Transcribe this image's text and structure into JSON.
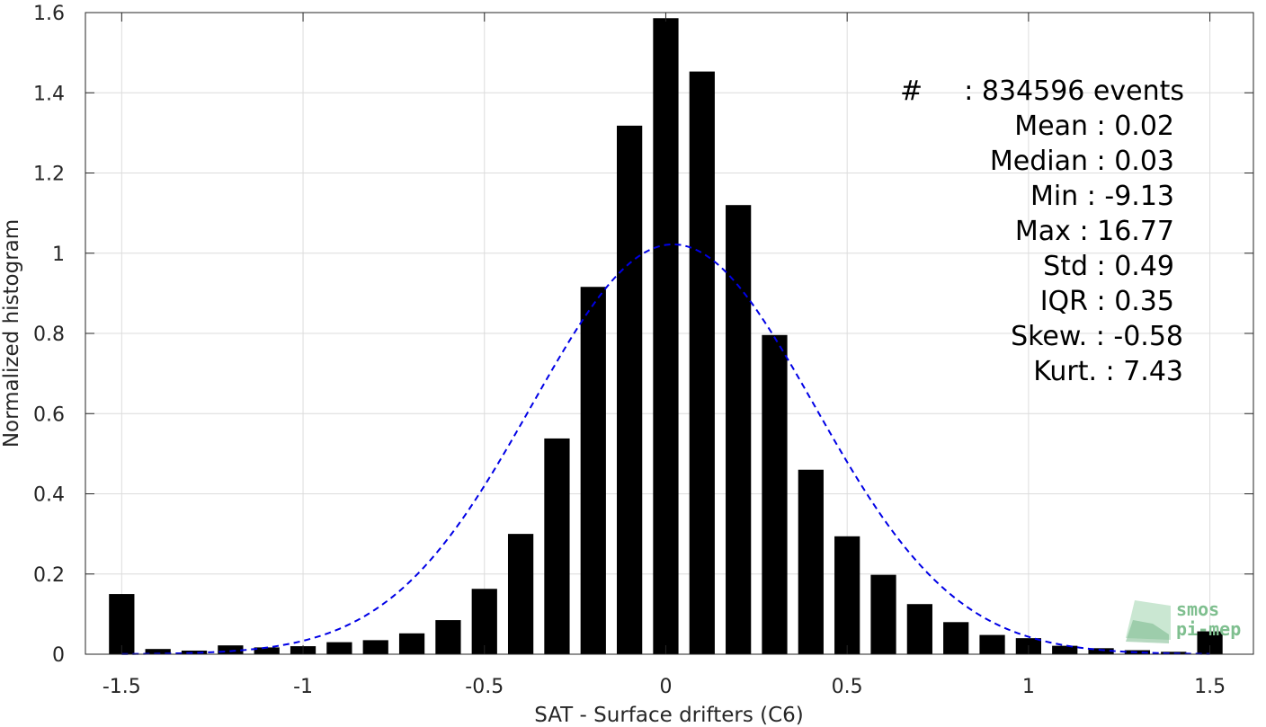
{
  "chart_data": {
    "type": "bar",
    "xlabel": "SAT - Surface drifters (C6)",
    "ylabel": "Normalized histogram",
    "xlim": [
      -1.6,
      1.62
    ],
    "ylim": [
      0,
      1.6
    ],
    "xticks": [
      -1.5,
      -1,
      -0.5,
      0,
      0.5,
      1,
      1.5
    ],
    "xtick_labels": [
      "-1.5",
      "-1",
      "-0.5",
      "0",
      "0.5",
      "1",
      "1.5"
    ],
    "yticks": [
      0,
      0.2,
      0.4,
      0.6,
      0.8,
      1,
      1.2,
      1.4,
      1.6
    ],
    "ytick_labels": [
      "0",
      "0.2",
      "0.4",
      "0.6",
      "0.8",
      "1",
      "1.2",
      "1.4",
      "1.6"
    ],
    "grid": true,
    "bar_color": "#000000",
    "bar_width": 0.07,
    "bars": {
      "x": [
        -1.5,
        -1.4,
        -1.3,
        -1.2,
        -1.1,
        -1.0,
        -0.9,
        -0.8,
        -0.7,
        -0.6,
        -0.5,
        -0.4,
        -0.3,
        -0.2,
        -0.1,
        0.0,
        0.1,
        0.2,
        0.3,
        0.4,
        0.5,
        0.6,
        0.7,
        0.8,
        0.9,
        1.0,
        1.1,
        1.2,
        1.3,
        1.4,
        1.5
      ],
      "values": [
        0.15,
        0.013,
        0.009,
        0.022,
        0.017,
        0.02,
        0.03,
        0.035,
        0.052,
        0.085,
        0.163,
        0.3,
        0.538,
        0.916,
        1.318,
        1.586,
        1.453,
        1.12,
        0.796,
        0.46,
        0.294,
        0.198,
        0.125,
        0.08,
        0.048,
        0.04,
        0.021,
        0.015,
        0.01,
        0.006,
        0.057
      ]
    },
    "fit_curve": {
      "style": "dashed",
      "color": "#0000e6",
      "mean": 0.02,
      "std": 0.39,
      "peak": 1.022,
      "x_range": [
        -1.5,
        1.5
      ]
    },
    "stats": [
      {
        "label": "#",
        "sep": ":",
        "value": "834596 events"
      },
      {
        "label": "Mean",
        "sep": ":",
        "value": "0.02"
      },
      {
        "label": "Median",
        "sep": ":",
        "value": "0.03"
      },
      {
        "label": "Min",
        "sep": ":",
        "value": "-9.13"
      },
      {
        "label": "Max",
        "sep": ":",
        "value": "16.77"
      },
      {
        "label": "Std",
        "sep": ":",
        "value": "0.49"
      },
      {
        "label": "IQR",
        "sep": ":",
        "value": "0.35"
      },
      {
        "label": "Skew.",
        "sep": ":",
        "value": "-0.58"
      },
      {
        "label": "Kurt.",
        "sep": ":",
        "value": "7.43"
      }
    ],
    "logo": {
      "line1": "smos",
      "line2": "pi-mep",
      "color": "#7fbf8f"
    }
  }
}
